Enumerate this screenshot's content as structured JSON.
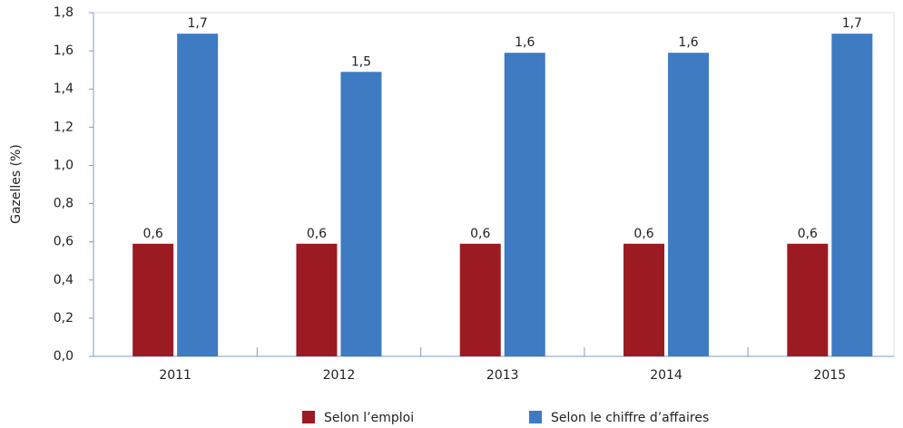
{
  "chart_data": {
    "type": "bar",
    "y_label": "Gazelles (%)",
    "categories": [
      "2011",
      "2012",
      "2013",
      "2014",
      "2015"
    ],
    "series": [
      {
        "name": "Selon l’emploi",
        "color": "#9c1b23",
        "values": [
          0.59,
          0.59,
          0.59,
          0.59,
          0.59
        ],
        "value_labels": [
          "0,6",
          "0,6",
          "0,6",
          "0,6",
          "0,6"
        ]
      },
      {
        "name": "Selon le chiffre d’affaires",
        "color": "#3e7bc2",
        "values": [
          1.69,
          1.49,
          1.59,
          1.59,
          1.69
        ],
        "value_labels": [
          "1,7",
          "1,5",
          "1,6",
          "1,6",
          "1,7"
        ]
      }
    ],
    "ylim": [
      0,
      1.8
    ],
    "yticks": [
      {
        "value": 0,
        "label": "0,0"
      },
      {
        "value": 0.2,
        "label": "0,2"
      },
      {
        "value": 0.4,
        "label": "0,4"
      },
      {
        "value": 0.6,
        "label": "0,6"
      },
      {
        "value": 0.8,
        "label": "0,8"
      },
      {
        "value": 1.0,
        "label": "1,0"
      },
      {
        "value": 1.2,
        "label": "1,2"
      },
      {
        "value": 1.4,
        "label": "1,4"
      },
      {
        "value": 1.6,
        "label": "1,6"
      },
      {
        "value": 1.8,
        "label": "1,8"
      }
    ],
    "legend": "bottom"
  }
}
